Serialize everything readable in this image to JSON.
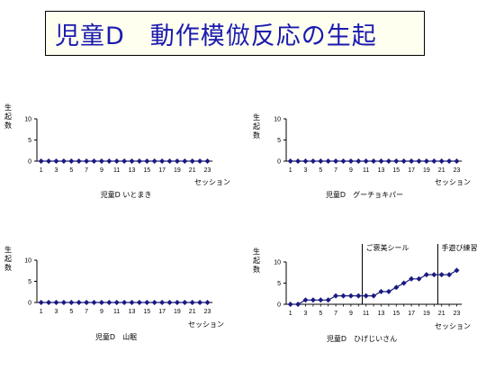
{
  "title": "児童D　動作模倣反応の生起",
  "chart_data": [
    {
      "type": "line",
      "caption": "児童D いとまき",
      "ylabel": [
        "生",
        "起",
        "数"
      ],
      "xlabel": "セッション",
      "x": [
        1,
        2,
        3,
        4,
        5,
        6,
        7,
        8,
        9,
        10,
        11,
        12,
        13,
        14,
        15,
        16,
        17,
        18,
        19,
        20,
        21,
        22,
        23
      ],
      "xticks": [
        "1",
        "3",
        "5",
        "7",
        "9",
        "11",
        "13",
        "15",
        "17",
        "19",
        "21",
        "23"
      ],
      "yticks": [
        "0",
        "5",
        "10"
      ],
      "ylim": [
        0,
        10
      ],
      "values": [
        0,
        0,
        0,
        0,
        0,
        0,
        0,
        0,
        0,
        0,
        0,
        0,
        0,
        0,
        0,
        0,
        0,
        0,
        0,
        0,
        0,
        0,
        0
      ],
      "annotations": []
    },
    {
      "type": "line",
      "caption": "児童D　グーチョキパー",
      "ylabel": [
        "生",
        "起",
        "数"
      ],
      "xlabel": "セッション",
      "x": [
        1,
        2,
        3,
        4,
        5,
        6,
        7,
        8,
        9,
        10,
        11,
        12,
        13,
        14,
        15,
        16,
        17,
        18,
        19,
        20,
        21,
        22,
        23
      ],
      "xticks": [
        "1",
        "3",
        "5",
        "7",
        "9",
        "11",
        "13",
        "15",
        "17",
        "19",
        "21",
        "23"
      ],
      "yticks": [
        "0",
        "5",
        "10"
      ],
      "ylim": [
        0,
        10
      ],
      "values": [
        0,
        0,
        0,
        0,
        0,
        0,
        0,
        0,
        0,
        0,
        0,
        0,
        0,
        0,
        0,
        0,
        0,
        0,
        0,
        0,
        0,
        0,
        0
      ],
      "annotations": []
    },
    {
      "type": "line",
      "caption": "児童D　山眠",
      "ylabel": [
        "生",
        "起",
        "数"
      ],
      "xlabel": "セッション",
      "x": [
        1,
        2,
        3,
        4,
        5,
        6,
        7,
        8,
        9,
        10,
        11,
        12,
        13,
        14,
        15,
        16,
        17,
        18,
        19,
        20,
        21,
        22,
        23
      ],
      "xticks": [
        "1",
        "3",
        "5",
        "7",
        "9",
        "11",
        "13",
        "15",
        "17",
        "19",
        "21",
        "23"
      ],
      "yticks": [
        "0",
        "5",
        "10"
      ],
      "ylim": [
        0,
        10
      ],
      "values": [
        0,
        0,
        0,
        0,
        0,
        0,
        0,
        0,
        0,
        0,
        0,
        0,
        0,
        0,
        0,
        0,
        0,
        0,
        0,
        0,
        0,
        0,
        0
      ],
      "annotations": []
    },
    {
      "type": "line",
      "caption": "児童D　ひげじいさん",
      "ylabel": [
        "生",
        "起",
        "数"
      ],
      "xlabel": "セッション",
      "x": [
        1,
        2,
        3,
        4,
        5,
        6,
        7,
        8,
        9,
        10,
        11,
        12,
        13,
        14,
        15,
        16,
        17,
        18,
        19,
        20,
        21,
        22,
        23
      ],
      "xticks": [
        "1",
        "3",
        "5",
        "7",
        "9",
        "11",
        "13",
        "15",
        "17",
        "19",
        "21",
        "23"
      ],
      "yticks": [
        "0",
        "5",
        "10"
      ],
      "ylim": [
        0,
        10
      ],
      "values": [
        0,
        0,
        1,
        1,
        1,
        1,
        2,
        2,
        2,
        2,
        2,
        2,
        3,
        3,
        4,
        5,
        6,
        6,
        7,
        7,
        7,
        7,
        8
      ],
      "annotations": [
        {
          "x": 10.5,
          "text": "ご褒美シール"
        },
        {
          "x": 20.5,
          "text": "手遊び練習"
        }
      ]
    }
  ]
}
